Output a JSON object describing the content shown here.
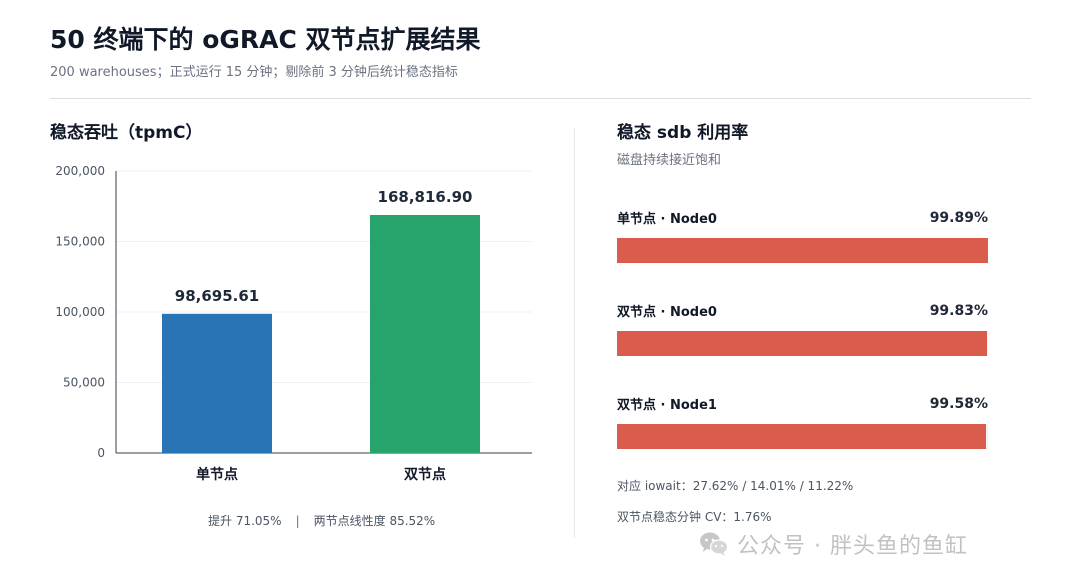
{
  "header": {
    "title": "50 终端下的 oGRAC 双节点扩展结果",
    "subtitle": "200 warehouses；正式运行 15 分钟；剔除前 3 分钟后统计稳态指标"
  },
  "left_panel": {
    "title": "稳态吞吐（tpmC）",
    "footnote_left": "提升 71.05%",
    "footnote_sep": "|",
    "footnote_right": "两节点线性度 85.52%"
  },
  "right_panel": {
    "title": "稳态 sdb 利用率",
    "subtitle": "磁盘持续接近饱和",
    "bars": [
      {
        "label": "单节点 · Node0",
        "value": 99.89,
        "display": "99.89%"
      },
      {
        "label": "双节点 · Node0",
        "value": 99.83,
        "display": "99.83%"
      },
      {
        "label": "双节点 · Node1",
        "value": 99.58,
        "display": "99.58%"
      }
    ],
    "iowait_note": "对应 iowait：27.62% / 14.01% / 11.22%",
    "cv_note": "双节点稳态分钟 CV：1.76%",
    "bar_color": "#d95c4c"
  },
  "watermark": {
    "text": "公众号 · 胖头鱼的鱼缸",
    "icon": "wechat-icon"
  },
  "chart_data": [
    {
      "type": "bar",
      "title": "稳态吞吐（tpmC）",
      "categories": [
        "单节点",
        "双节点"
      ],
      "values": [
        98695.61,
        168816.9
      ],
      "value_labels": [
        "98,695.61",
        "168,816.90"
      ],
      "colors": [
        "#2874b4",
        "#26a46c"
      ],
      "ylim": [
        0,
        200000
      ],
      "yticks": [
        0,
        50000,
        100000,
        150000,
        200000
      ],
      "ytick_labels": [
        "0",
        "50,000",
        "100,000",
        "150,000",
        "200,000"
      ],
      "grid": true,
      "xlabel": "",
      "ylabel": ""
    },
    {
      "type": "bar",
      "orientation": "horizontal",
      "title": "稳态 sdb 利用率",
      "categories": [
        "单节点 · Node0",
        "双节点 · Node0",
        "双节点 · Node1"
      ],
      "values": [
        99.89,
        99.83,
        99.58
      ],
      "unit": "%",
      "xlim": [
        0,
        100
      ]
    }
  ]
}
